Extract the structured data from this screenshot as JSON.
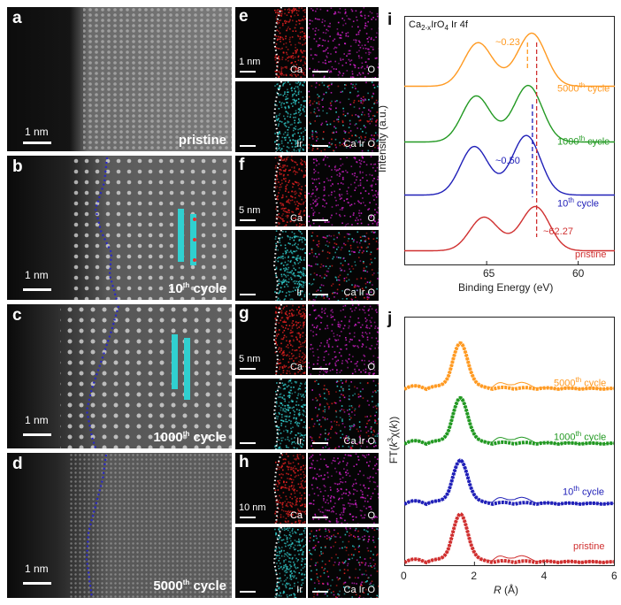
{
  "panels": {
    "a": {
      "label": "a",
      "scale": "1 nm",
      "caption": "pristine"
    },
    "b": {
      "label": "b",
      "scale": "1 nm",
      "caption_num": "10",
      "caption_sup": "th",
      "caption_suffix": " cycle"
    },
    "c": {
      "label": "c",
      "scale": "1 nm",
      "caption_num": "1000",
      "caption_sup": "th",
      "caption_suffix": " cycle"
    },
    "d": {
      "label": "d",
      "scale": "1 nm",
      "caption_num": "5000",
      "caption_sup": "th",
      "caption_suffix": " cycle"
    }
  },
  "maps": {
    "e": {
      "label": "e",
      "scale": "1 nm"
    },
    "f": {
      "label": "f",
      "scale": "5 nm"
    },
    "g": {
      "label": "g",
      "scale": "5 nm"
    },
    "h": {
      "label": "h",
      "scale": "10 nm"
    },
    "elements": {
      "ca": "Ca",
      "o": "O",
      "ir": "Ir",
      "overlay": "Ca Ir O"
    },
    "colors": {
      "ca": "#e02020",
      "o": "#d020c8",
      "ir": "#30c8c8"
    }
  },
  "chart_data": [
    {
      "label": "i",
      "type": "line",
      "title": "Ca2-xIrO4 Ir 4f",
      "title_main": "Ca",
      "title_sub": "2-x",
      "title_rest": "IrO",
      "title_sub2": "4",
      "title_tail": " Ir 4f",
      "xlabel": "Binding Energy (eV)",
      "ylabel": "Intensity (a.u.)",
      "xlim": [
        69.5,
        58
      ],
      "x_ticks": [
        65,
        60
      ],
      "reversed_x": true,
      "annotations": {
        "shift_5000": "~0.23",
        "shift_10": "~0.50",
        "peak_pristine": "~62.27"
      },
      "ref_lines": [
        62.27,
        62.5,
        62.77
      ],
      "series": [
        {
          "name": "pristine",
          "color": "#d03030",
          "offset": 0,
          "peaks": [
            [
              65.2,
              0.55
            ],
            [
              62.3,
              0.75
            ]
          ]
        },
        {
          "name": "10th cycle",
          "color": "#2020b8",
          "offset": 1,
          "peaks": [
            [
              65.7,
              0.85
            ],
            [
              62.8,
              1.0
            ]
          ]
        },
        {
          "name": "1000th cycle",
          "color": "#229922",
          "offset": 2,
          "peaks": [
            [
              65.6,
              0.8
            ],
            [
              62.7,
              0.95
            ]
          ]
        },
        {
          "name": "5000th cycle",
          "color": "#ff9a22",
          "offset": 3,
          "peaks": [
            [
              65.5,
              0.75
            ],
            [
              62.5,
              0.9
            ]
          ]
        }
      ],
      "legend_labels": [
        {
          "num": "5000",
          "sup": "th",
          "suffix": " cycle"
        },
        {
          "num": "1000",
          "sup": "th",
          "suffix": " cycle"
        },
        {
          "num": "10",
          "sup": "th",
          "suffix": " cycle"
        },
        {
          "num": "",
          "sup": "",
          "suffix": "pristine"
        }
      ]
    },
    {
      "label": "j",
      "type": "line",
      "xlabel": "R (Å)",
      "xlabel_italic": "R",
      "xlabel_rest": " (Å)",
      "ylabel": "FT(k3χ(k))",
      "xlim": [
        0,
        6
      ],
      "x_ticks": [
        0,
        2,
        4,
        6
      ],
      "series": [
        {
          "name": "pristine",
          "color": "#d03030",
          "offset": 0,
          "main_peak": [
            1.6,
            1.0
          ]
        },
        {
          "name": "10th cycle",
          "color": "#2020b8",
          "offset": 1,
          "main_peak": [
            1.6,
            0.9
          ]
        },
        {
          "name": "1000th cycle",
          "color": "#229922",
          "offset": 2,
          "main_peak": [
            1.6,
            0.95
          ]
        },
        {
          "name": "5000th cycle",
          "color": "#ff9a22",
          "offset": 3,
          "main_peak": [
            1.6,
            0.95
          ]
        }
      ],
      "legend_labels": [
        {
          "num": "5000",
          "sup": "th",
          "suffix": " cycle"
        },
        {
          "num": "1000",
          "sup": "th",
          "suffix": " cycle"
        },
        {
          "num": "10",
          "sup": "th",
          "suffix": " cycle"
        },
        {
          "num": "",
          "sup": "",
          "suffix": "pristine"
        }
      ]
    }
  ]
}
